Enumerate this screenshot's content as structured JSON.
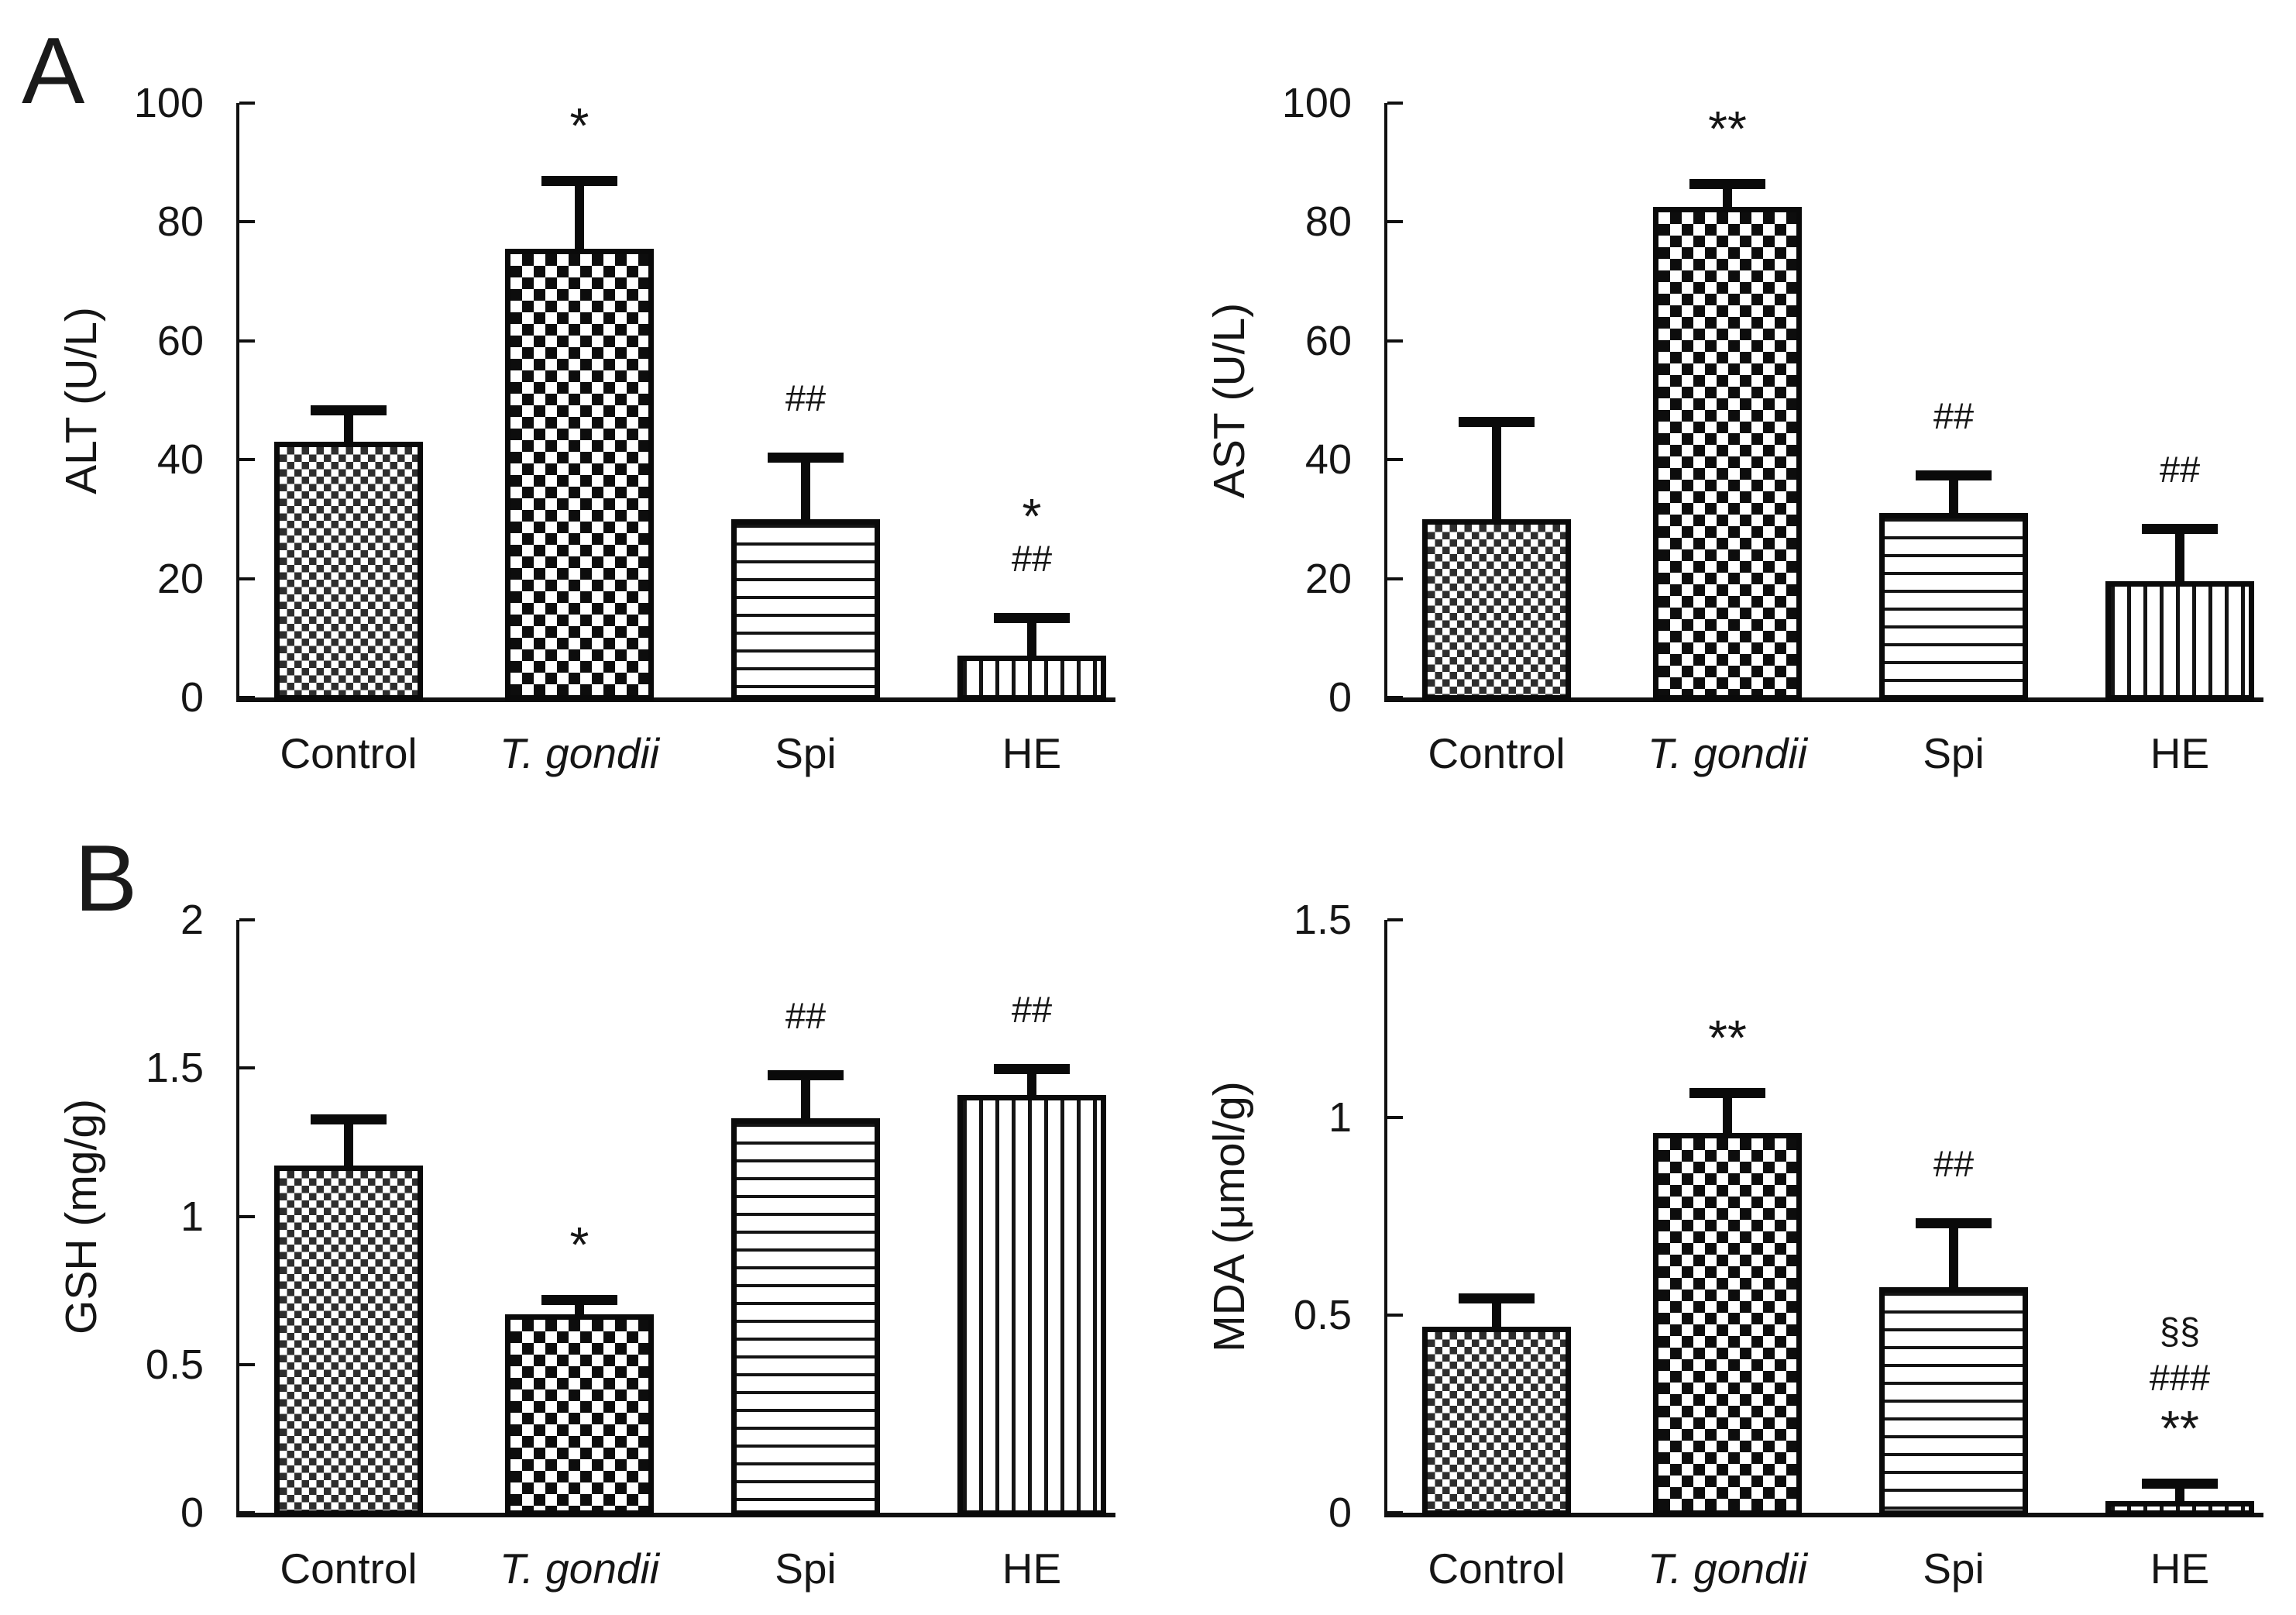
{
  "figure": {
    "background": "#ffffff",
    "ink_color": "#111111",
    "panel_a_label": "A",
    "panel_b_label": "B"
  },
  "chart_data": [
    {
      "type": "bar",
      "panel": "A",
      "position": "top-left",
      "title": "",
      "xlabel": "",
      "ylabel": "ALT (U/L)",
      "ylim": [
        0,
        100
      ],
      "yticks": [
        0,
        20,
        40,
        60,
        80,
        100
      ],
      "grid": false,
      "legend": null,
      "categories": [
        "Control",
        "T. gondii",
        "Spi",
        "HE"
      ],
      "category_styles": [
        "normal",
        "italic",
        "normal",
        "normal"
      ],
      "values": [
        43,
        75.5,
        30,
        7
      ],
      "errors_up": [
        4.5,
        10.5,
        9.5,
        5.5
      ],
      "bar_patterns": [
        "fine-check",
        "checkerboard",
        "horizontal-lines",
        "vertical-lines"
      ],
      "sig_markers": [
        [],
        [
          "*"
        ],
        [
          "##"
        ],
        [
          "*",
          "##"
        ]
      ]
    },
    {
      "type": "bar",
      "panel": "A",
      "position": "top-right",
      "title": "",
      "xlabel": "",
      "ylabel": "AST (U/L)",
      "ylim": [
        0,
        100
      ],
      "yticks": [
        0,
        20,
        40,
        60,
        80,
        100
      ],
      "grid": false,
      "legend": null,
      "categories": [
        "Control",
        "T. gondii",
        "Spi",
        "HE"
      ],
      "category_styles": [
        "normal",
        "italic",
        "normal",
        "normal"
      ],
      "values": [
        30,
        82.5,
        31,
        19.5
      ],
      "errors_up": [
        15.5,
        3,
        5.5,
        8
      ],
      "bar_patterns": [
        "fine-check",
        "checkerboard",
        "horizontal-lines",
        "vertical-lines"
      ],
      "sig_markers": [
        [],
        [
          "**"
        ],
        [
          "##"
        ],
        [
          "##"
        ]
      ]
    },
    {
      "type": "bar",
      "panel": "B",
      "position": "bottom-left",
      "title": "",
      "xlabel": "",
      "ylabel": "GSH (mg/g)",
      "ylim": [
        0,
        2
      ],
      "yticks": [
        0,
        0.5,
        1,
        1.5,
        2
      ],
      "grid": false,
      "legend": null,
      "categories": [
        "Control",
        "T. gondii",
        "Spi",
        "HE"
      ],
      "category_styles": [
        "normal",
        "italic",
        "normal",
        "normal"
      ],
      "values": [
        1.17,
        0.67,
        1.33,
        1.41
      ],
      "errors_up": [
        0.14,
        0.03,
        0.13,
        0.07
      ],
      "bar_patterns": [
        "fine-check",
        "checkerboard",
        "horizontal-lines",
        "vertical-lines"
      ],
      "sig_markers": [
        [],
        [
          "*"
        ],
        [
          "##"
        ],
        [
          "##"
        ]
      ]
    },
    {
      "type": "bar",
      "panel": "B",
      "position": "bottom-right",
      "title": "",
      "xlabel": "",
      "ylabel": "MDA (μmol/g)",
      "ylim": [
        0,
        1.5
      ],
      "yticks": [
        0,
        0.5,
        1,
        1.5
      ],
      "grid": false,
      "legend": null,
      "categories": [
        "Control",
        "T. gondii",
        "Spi",
        "HE"
      ],
      "category_styles": [
        "normal",
        "italic",
        "normal",
        "normal"
      ],
      "values": [
        0.47,
        0.96,
        0.57,
        0.03
      ],
      "errors_up": [
        0.06,
        0.09,
        0.15,
        0.03
      ],
      "bar_patterns": [
        "fine-check",
        "checkerboard",
        "horizontal-lines",
        "vertical-lines"
      ],
      "sig_markers": [
        [],
        [
          "**"
        ],
        [
          "##"
        ],
        [
          "§§",
          "###",
          "**"
        ]
      ]
    }
  ]
}
